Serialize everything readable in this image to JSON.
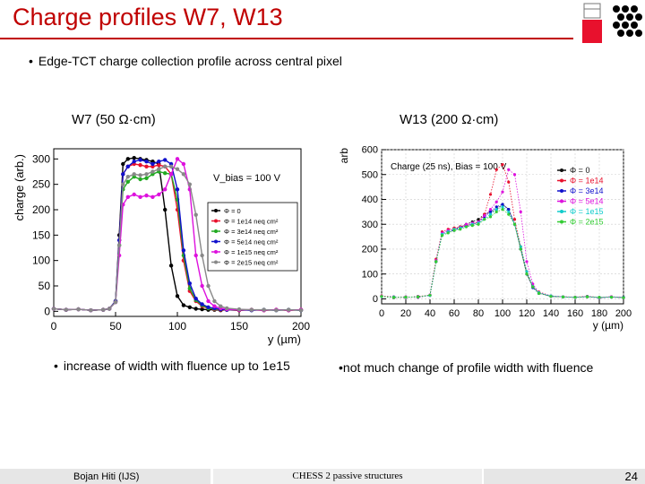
{
  "title": "Charge profiles W7, W13",
  "bullet_main": "Edge-TCT charge collection profile across central pixel",
  "bullet_left": "increase of width with fluence up to 1e15",
  "bullet_right": "not much change of profile width with fluence",
  "footer": {
    "author": "Bojan Hiti (IJS)",
    "center": "CHESS 2 passive structures",
    "page": "24"
  },
  "colors": {
    "title": "#c00000"
  },
  "chart_data": [
    {
      "type": "line",
      "title": "W7 (50 Ω·cm)",
      "xlabel": "y (µm)",
      "ylabel": "charge (arb.)",
      "xlim": [
        0,
        200
      ],
      "ylim": [
        -10,
        320
      ],
      "xticks": [
        0,
        50,
        100,
        150,
        200
      ],
      "yticks": [
        0,
        50,
        100,
        150,
        200,
        250,
        300
      ],
      "annotation": "V_bias = 100 V",
      "legend_position": "right",
      "x": [
        0,
        10,
        20,
        30,
        40,
        45,
        50,
        53,
        56,
        60,
        65,
        70,
        75,
        80,
        85,
        90,
        95,
        100,
        105,
        110,
        115,
        120,
        125,
        130,
        135,
        140,
        150,
        160,
        170,
        180,
        190,
        200
      ],
      "series": [
        {
          "name": "Φ = 0",
          "color": "#000000",
          "values": [
            5,
            3,
            4,
            2,
            3,
            5,
            20,
            150,
            290,
            300,
            302,
            300,
            298,
            295,
            290,
            200,
            90,
            30,
            12,
            8,
            5,
            4,
            3,
            3,
            2,
            3,
            2,
            3,
            2,
            3,
            2,
            3
          ]
        },
        {
          "name": "Φ = 1e14 neq cm²",
          "color": "#e8112d",
          "values": [
            5,
            3,
            4,
            2,
            3,
            5,
            20,
            140,
            270,
            285,
            290,
            288,
            285,
            285,
            288,
            285,
            270,
            200,
            100,
            40,
            20,
            10,
            6,
            4,
            3,
            3,
            2,
            3,
            2,
            3,
            2,
            3
          ]
        },
        {
          "name": "Φ = 3e14 neq cm²",
          "color": "#22aa22",
          "values": [
            5,
            3,
            4,
            2,
            3,
            5,
            20,
            130,
            240,
            255,
            265,
            260,
            262,
            270,
            275,
            272,
            270,
            220,
            110,
            45,
            22,
            12,
            6,
            5,
            4,
            3,
            3,
            2,
            3,
            2,
            3,
            2
          ]
        },
        {
          "name": "Φ = 5e14 neq cm²",
          "color": "#1010cc",
          "values": [
            5,
            3,
            4,
            2,
            3,
            5,
            20,
            140,
            270,
            285,
            295,
            298,
            295,
            290,
            295,
            298,
            290,
            240,
            120,
            55,
            25,
            14,
            8,
            6,
            4,
            3,
            3,
            2,
            3,
            2,
            3,
            2
          ]
        },
        {
          "name": "Φ = 1e15 neq cm²",
          "color": "#dd11dd",
          "values": [
            5,
            3,
            4,
            2,
            3,
            5,
            18,
            110,
            210,
            225,
            230,
            225,
            228,
            225,
            230,
            240,
            270,
            300,
            290,
            240,
            110,
            50,
            20,
            10,
            6,
            4,
            3,
            3,
            2,
            3,
            2,
            3
          ]
        },
        {
          "name": "Φ = 2e15 neq cm²",
          "color": "#888888",
          "values": [
            5,
            3,
            4,
            2,
            3,
            5,
            18,
            130,
            250,
            265,
            270,
            268,
            270,
            275,
            280,
            285,
            285,
            280,
            270,
            250,
            190,
            110,
            50,
            20,
            10,
            6,
            4,
            3,
            3,
            2,
            3,
            2
          ]
        }
      ]
    },
    {
      "type": "line",
      "title": "W13 (200 Ω·cm)",
      "xlabel": "y (µm)",
      "ylabel": "arb",
      "xlim": [
        0,
        200
      ],
      "ylim": [
        -20,
        600
      ],
      "xticks": [
        0,
        20,
        40,
        60,
        80,
        100,
        120,
        140,
        160,
        180,
        200
      ],
      "yticks": [
        0,
        100,
        200,
        300,
        400,
        500,
        600
      ],
      "annotation": "Charge (25 ns), Bias = 100 V",
      "legend_position": "top-right",
      "x": [
        0,
        10,
        20,
        30,
        40,
        45,
        50,
        55,
        60,
        65,
        70,
        75,
        80,
        85,
        90,
        95,
        100,
        105,
        110,
        115,
        120,
        125,
        130,
        140,
        150,
        160,
        170,
        180,
        190,
        200
      ],
      "series": [
        {
          "name": "Φ = 0",
          "color": "#111111",
          "values": [
            10,
            5,
            8,
            6,
            15,
            150,
            260,
            270,
            280,
            290,
            300,
            310,
            320,
            340,
            350,
            360,
            380,
            360,
            300,
            200,
            100,
            50,
            25,
            10,
            8,
            6,
            10,
            5,
            8,
            6
          ]
        },
        {
          "name": "Φ = 1e14",
          "color": "#e8112d",
          "values": [
            12,
            8,
            5,
            10,
            15,
            160,
            270,
            280,
            285,
            290,
            295,
            300,
            310,
            340,
            420,
            520,
            540,
            470,
            320,
            210,
            110,
            50,
            28,
            12,
            8,
            7,
            10,
            6,
            8,
            5
          ]
        },
        {
          "name": "Φ = 3e14",
          "color": "#1010cc",
          "values": [
            10,
            8,
            6,
            9,
            14,
            150,
            260,
            270,
            275,
            285,
            295,
            300,
            305,
            330,
            350,
            370,
            380,
            360,
            300,
            200,
            100,
            45,
            22,
            10,
            8,
            6,
            9,
            5,
            7,
            6
          ]
        },
        {
          "name": "Φ = 5e14",
          "color": "#dd11dd",
          "values": [
            11,
            7,
            8,
            6,
            16,
            155,
            265,
            275,
            280,
            288,
            300,
            305,
            310,
            335,
            360,
            390,
            430,
            520,
            500,
            350,
            150,
            60,
            25,
            12,
            9,
            7,
            8,
            6,
            9,
            5
          ]
        },
        {
          "name": "Φ = 1e15",
          "color": "#11cccc",
          "values": [
            9,
            7,
            6,
            8,
            14,
            150,
            260,
            270,
            280,
            285,
            290,
            300,
            305,
            320,
            340,
            360,
            370,
            350,
            300,
            210,
            110,
            50,
            25,
            12,
            8,
            6,
            9,
            6,
            7,
            5
          ]
        },
        {
          "name": "Φ = 2e15",
          "color": "#33cc33",
          "values": [
            10,
            6,
            7,
            8,
            15,
            150,
            255,
            265,
            275,
            280,
            290,
            295,
            300,
            320,
            330,
            350,
            360,
            340,
            300,
            200,
            100,
            48,
            22,
            10,
            8,
            6,
            8,
            6,
            7,
            5
          ]
        }
      ]
    }
  ]
}
